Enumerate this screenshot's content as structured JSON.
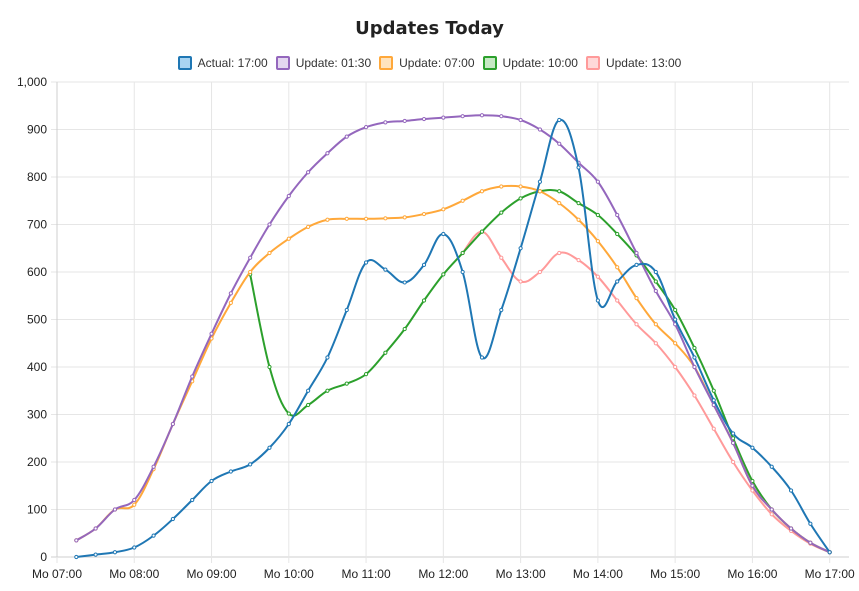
{
  "chart_data": {
    "type": "line",
    "title": "Updates Today",
    "xlabel": "",
    "ylabel": "",
    "ylim": [
      0,
      1000
    ],
    "yticks": [
      0,
      100,
      200,
      300,
      400,
      500,
      600,
      700,
      800,
      900,
      1000
    ],
    "ytick_labels": [
      "0",
      "100",
      "200",
      "300",
      "400",
      "500",
      "600",
      "700",
      "800",
      "900",
      "1,000"
    ],
    "xlim": [
      7.0,
      17.25
    ],
    "xticks": [
      7,
      8,
      9,
      10,
      11,
      12,
      13,
      14,
      15,
      16,
      17
    ],
    "xtick_labels": [
      "Mo 07:00",
      "Mo 08:00",
      "Mo 09:00",
      "Mo 10:00",
      "Mo 11:00",
      "Mo 12:00",
      "Mo 13:00",
      "Mo 14:00",
      "Mo 15:00",
      "Mo 16:00",
      "Mo 17:00"
    ],
    "grid": true,
    "legend_position": "top",
    "series": [
      {
        "name": "Actual: 17:00",
        "color": "#1f77b4",
        "fill": "#a8d4f2",
        "x": [
          7.25,
          7.5,
          7.75,
          8.0,
          8.25,
          8.5,
          8.75,
          9.0,
          9.25,
          9.5,
          9.75,
          10.0,
          10.25,
          10.5,
          10.75,
          11.0,
          11.25,
          11.5,
          11.75,
          12.0,
          12.25,
          12.5,
          12.75,
          13.0,
          13.25,
          13.5,
          13.75,
          14.0,
          14.25,
          14.5,
          14.75,
          15.0,
          15.25,
          15.5,
          15.75,
          16.0,
          16.25,
          16.5,
          16.75,
          17.0
        ],
        "y": [
          0,
          5,
          10,
          20,
          45,
          80,
          120,
          160,
          180,
          195,
          230,
          280,
          350,
          420,
          520,
          620,
          605,
          578,
          615,
          680,
          600,
          420,
          520,
          650,
          790,
          920,
          820,
          540,
          580,
          615,
          600,
          500,
          420,
          330,
          260,
          230,
          190,
          140,
          70,
          10
        ]
      },
      {
        "name": "Update: 01:30",
        "color": "#9467bd",
        "fill": "#e4d7f0",
        "x": [
          7.25,
          7.5,
          7.75,
          8.0,
          8.25,
          8.5,
          8.75,
          9.0,
          9.25,
          9.5,
          9.75,
          10.0,
          10.25,
          10.5,
          10.75,
          11.0,
          11.25,
          11.5,
          11.75,
          12.0,
          12.25,
          12.5,
          12.75,
          13.0,
          13.25,
          13.5,
          13.75,
          14.0,
          14.25,
          14.5,
          14.75,
          15.0,
          15.25,
          15.5,
          15.75,
          16.0,
          16.25,
          16.5,
          16.75,
          17.0
        ],
        "y": [
          35,
          60,
          100,
          120,
          190,
          280,
          380,
          470,
          555,
          630,
          700,
          760,
          810,
          850,
          885,
          905,
          915,
          918,
          922,
          925,
          928,
          930,
          928,
          920,
          900,
          870,
          830,
          790,
          720,
          640,
          560,
          490,
          400,
          320,
          240,
          150,
          100,
          60,
          30,
          10
        ]
      },
      {
        "name": "Update: 07:00",
        "color": "#ffa83a",
        "fill": "#ffe3bd",
        "x": [
          7.25,
          7.5,
          7.75,
          8.0,
          8.25,
          8.5,
          8.75,
          9.0,
          9.25,
          9.5,
          9.75,
          10.0,
          10.25,
          10.5,
          10.75,
          11.0,
          11.25,
          11.5,
          11.75,
          12.0,
          12.25,
          12.5,
          12.75,
          13.0,
          13.25,
          13.5,
          13.75,
          14.0,
          14.25,
          14.5,
          14.75,
          15.0,
          15.25,
          15.5,
          15.75,
          16.0,
          16.25,
          16.5,
          16.75,
          17.0
        ],
        "y": [
          35,
          60,
          100,
          110,
          185,
          280,
          370,
          460,
          535,
          600,
          640,
          670,
          695,
          710,
          712,
          712,
          713,
          715,
          722,
          732,
          750,
          770,
          780,
          780,
          770,
          745,
          710,
          665,
          610,
          545,
          490,
          450,
          400,
          320,
          240,
          150,
          100,
          60,
          30,
          10
        ]
      },
      {
        "name": "Update: 10:00",
        "color": "#2ca02c",
        "fill": "#c6e9c4",
        "x": [
          9.5,
          9.75,
          10.0,
          10.25,
          10.5,
          10.75,
          11.0,
          11.25,
          11.5,
          11.75,
          12.0,
          12.25,
          12.5,
          12.75,
          13.0,
          13.25,
          13.5,
          13.75,
          14.0,
          14.25,
          14.5,
          14.75,
          15.0,
          15.25,
          15.5,
          15.75,
          16.0,
          16.25,
          16.5,
          16.75,
          17.0
        ],
        "y": [
          595,
          400,
          302,
          320,
          350,
          365,
          385,
          430,
          480,
          540,
          595,
          640,
          685,
          725,
          755,
          770,
          770,
          745,
          720,
          680,
          635,
          580,
          520,
          440,
          350,
          250,
          160,
          100,
          60,
          30,
          10
        ]
      },
      {
        "name": "Update: 13:00",
        "color": "#ff9a9a",
        "fill": "#ffd8d8",
        "x": [
          12.25,
          12.5,
          12.75,
          13.0,
          13.25,
          13.5,
          13.75,
          14.0,
          14.25,
          14.5,
          14.75,
          15.0,
          15.25,
          15.5,
          15.75,
          16.0,
          16.25,
          16.5,
          16.75,
          17.0
        ],
        "y": [
          640,
          685,
          630,
          580,
          600,
          640,
          625,
          590,
          540,
          490,
          450,
          400,
          340,
          270,
          200,
          140,
          90,
          55,
          28,
          10
        ]
      }
    ]
  }
}
